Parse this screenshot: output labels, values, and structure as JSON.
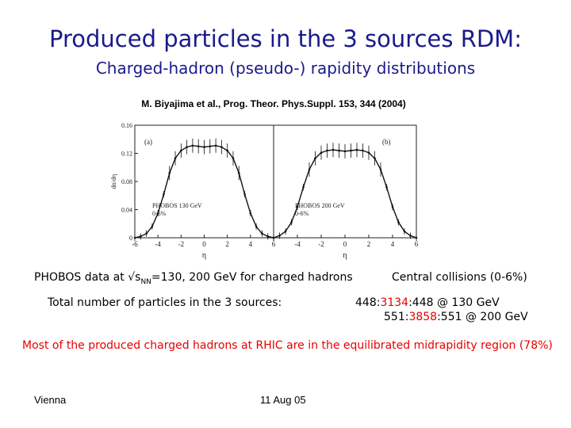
{
  "title": "Produced particles in the 3 sources RDM:",
  "subtitle": "Charged-hadron (pseudo-) rapidity distributions",
  "citation": "M. Biyajima et al., Prog. Theor. Phys.Suppl. 153, 344 (2004)",
  "chart_data": [
    {
      "type": "line",
      "panel_label": "(a)",
      "annotation": [
        "PHOBOS 130 GeV",
        "0-6%"
      ],
      "xlabel": "η",
      "ylabel": "dn/dη",
      "xlim": [
        -6,
        6
      ],
      "ylim": [
        0,
        0.16
      ],
      "x_ticks": [
        "-6",
        "-4",
        "-2",
        "0",
        "2",
        "4",
        "6"
      ],
      "y_ticks": [
        "0",
        "0.04",
        "0.08",
        "0.12",
        "0.16"
      ],
      "x": [
        -6,
        -5.5,
        -5,
        -4.5,
        -4,
        -3.5,
        -3,
        -2.5,
        -2,
        -1.5,
        -1,
        -0.5,
        0,
        0.5,
        1,
        1.5,
        2,
        2.5,
        3,
        3.5,
        4,
        4.5,
        5,
        5.5,
        6
      ],
      "values": [
        0.0,
        0.002,
        0.006,
        0.016,
        0.035,
        0.062,
        0.092,
        0.113,
        0.124,
        0.129,
        0.131,
        0.13,
        0.129,
        0.13,
        0.131,
        0.129,
        0.124,
        0.113,
        0.092,
        0.062,
        0.035,
        0.016,
        0.006,
        0.002,
        0.0
      ]
    },
    {
      "type": "line",
      "panel_label": "(b)",
      "annotation": [
        "PHOBOS 200 GeV",
        "0-6%"
      ],
      "xlabel": "η",
      "ylabel": "",
      "xlim": [
        -6,
        6
      ],
      "ylim": [
        0,
        0.16
      ],
      "x_ticks": [
        "-6",
        "-4",
        "-2",
        "0",
        "2",
        "4",
        "6"
      ],
      "x": [
        -6,
        -5.5,
        -5,
        -4.5,
        -4,
        -3.5,
        -3,
        -2.5,
        -2,
        -1.5,
        -1,
        -0.5,
        0,
        0.5,
        1,
        1.5,
        2,
        2.5,
        3,
        3.5,
        4,
        4.5,
        5,
        5.5,
        6
      ],
      "values": [
        0.0,
        0.003,
        0.009,
        0.022,
        0.044,
        0.072,
        0.097,
        0.113,
        0.121,
        0.124,
        0.125,
        0.124,
        0.123,
        0.124,
        0.125,
        0.124,
        0.121,
        0.113,
        0.097,
        0.072,
        0.044,
        0.022,
        0.009,
        0.003,
        0.0
      ]
    }
  ],
  "phobos_line": {
    "prefix": "PHOBOS data at ",
    "sqrt": "√",
    "s": "s",
    "nn": "NN",
    "suffix": "=130, 200 GeV for charged hadrons"
  },
  "central_line": "Central collisions (0-6%)",
  "total_label": "Total number of particles in the 3 sources:",
  "row1": {
    "a": "448:",
    "b": "3134",
    "c": ":448 @ 130 GeV"
  },
  "row2": {
    "a": "551:",
    "b": "3858",
    "c": ":551 @ 200 GeV"
  },
  "note": "Most of the produced charged hadrons at RHIC are in the equilibrated midrapidity region (78%)",
  "footer_left": "Vienna",
  "footer_center": "11 Aug 05"
}
